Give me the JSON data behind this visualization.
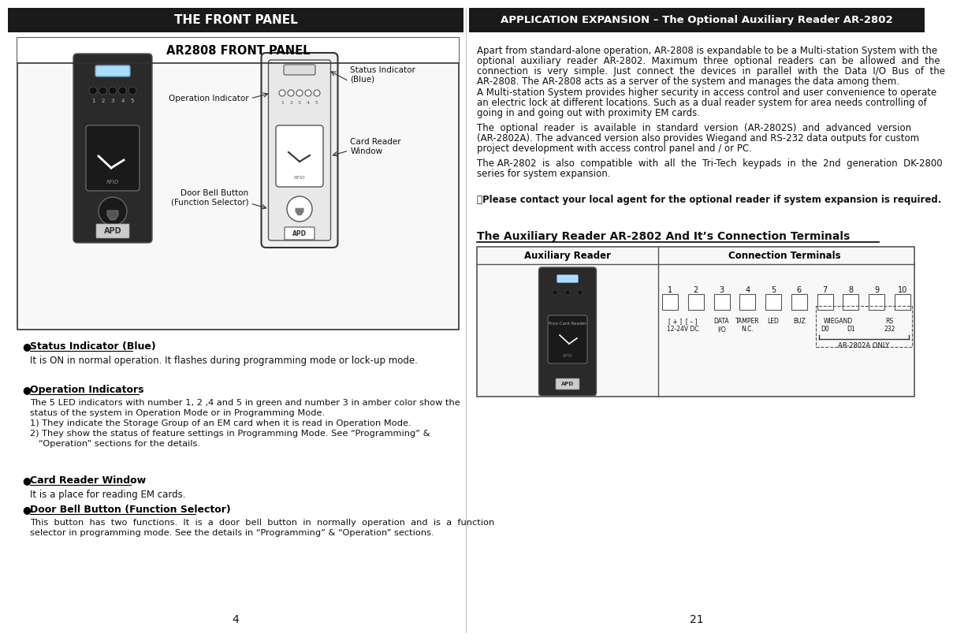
{
  "bg_color": "#ffffff",
  "left_header_bg": "#1a1a1a",
  "right_header_bg": "#1a1a1a",
  "left_header_text": "THE FRONT PANEL",
  "right_header_text": "APPLICATION EXPANSION – The Optional Auxiliary Reader AR-2802",
  "left_panel_title": "AR2808 FRONT PANEL",
  "diagram_labels": {
    "status_indicator": "Status Indicator\n(Blue)",
    "operation_indicator": "Operation Indicator",
    "card_reader": "Card Reader\nWindow",
    "door_bell": "Door Bell Button\n(Function Selector)"
  },
  "bullet_sections": [
    {
      "title": "Status Indicator (Blue)",
      "text": "It is ON in normal operation. It flashes during programming mode or lock-up mode."
    },
    {
      "title": "Operation Indicators",
      "text_lines": [
        "The 5 LED indicators with number 1, 2 ,4 and 5 in green and number 3 in amber color show the",
        "status of the system in Operation Mode or in Programming Mode.",
        "1) They indicate the Storage Group of an EM card when it is read in Operation Mode.",
        "2) They show the status of feature settings in Programming Mode. See “Programming” &",
        "   “Operation” sections for the details."
      ]
    },
    {
      "title": "Card Reader Window",
      "text": "It is a place for reading EM cards."
    },
    {
      "title": "Door Bell Button (Function Selector)",
      "text_lines": [
        "This  button  has  two  functions.  It  is  a  door  bell  button  in  normally  operation  and  is  a  function",
        "selector in programming mode. See the details in “Programming” & “Operation” sections."
      ]
    }
  ],
  "right_para1_lines": [
    "Apart from standard-alone operation, AR-2808 is expandable to be a Multi-station System with the",
    "optional  auxiliary  reader  AR-2802.  Maximum  three  optional  readers  can  be  allowed  and  the",
    "connection  is  very  simple.  Just  connect  the  devices  in  parallel  with  the  Data  I/O  Bus  of  the",
    "AR-2808. The AR-2808 acts as a server of the system and manages the data among them."
  ],
  "right_para2_lines": [
    "A Multi-station System provides higher security in access control and user convenience to operate",
    "an electric lock at different locations. Such as a dual reader system for area needs controlling of",
    "going in and going out with proximity EM cards."
  ],
  "right_para3_lines": [
    "The  optional  reader  is  available  in  standard  version  (AR-2802S)  and  advanced  version",
    "(AR-2802A). The advanced version also provides Wiegand and RS-232 data outputs for custom",
    "project development with access control panel and / or PC."
  ],
  "right_para4_lines": [
    "The AR-2802  is  also  compatible  with  all  the  Tri-Tech  keypads  in  the  2nd  generation  DK-2800",
    "series for system expansion."
  ],
  "right_note": "＊Please contact your local agent for the optional reader if system expansion is required.",
  "aux_title": "The Auxiliary Reader AR-2802 And It’s Connection Terminals",
  "aux_col1": "Auxiliary Reader",
  "aux_col2": "Connection Terminals",
  "ar_note": "AR-2802A ONLY",
  "minus_sign": "–",
  "bullet": "●",
  "page_left": "4",
  "page_right": "21"
}
